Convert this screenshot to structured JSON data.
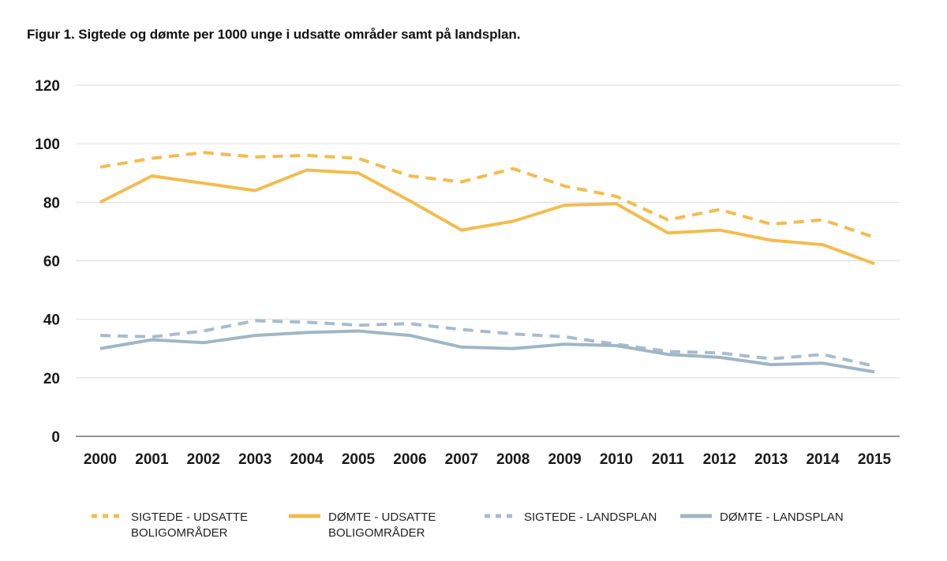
{
  "chart_data": {
    "type": "line",
    "title": "Figur 1. Sigtede og dømte per 1000 unge i udsatte områder samt på landsplan.",
    "xlabel": "",
    "ylabel": "",
    "x": [
      "2000",
      "2001",
      "2002",
      "2003",
      "2004",
      "2005",
      "2006",
      "2007",
      "2008",
      "2009",
      "2010",
      "2011",
      "2012",
      "2013",
      "2014",
      "2015"
    ],
    "ylim": [
      0,
      120
    ],
    "yticks": [
      "0",
      "20",
      "40",
      "60",
      "80",
      "100",
      "120"
    ],
    "grid": true,
    "legend_position": "bottom",
    "series": [
      {
        "name": "SIGTEDE - UDSATTE BOLIGOMRÅDER",
        "name_lines": [
          "SIGTEDE - UDSATTE",
          "BOLIGOMRÅDER"
        ],
        "color": "#f2bc4f",
        "style": "dashed",
        "values": [
          92,
          95,
          97,
          95.5,
          96,
          95,
          89,
          87,
          91.5,
          85.5,
          82,
          74,
          77.5,
          72.5,
          74,
          68
        ]
      },
      {
        "name": "DØMTE - UDSATTE BOLIGOMRÅDER",
        "name_lines": [
          "DØMTE - UDSATTE",
          "BOLIGOMRÅDER"
        ],
        "color": "#f2bc4f",
        "style": "solid",
        "values": [
          80,
          89,
          86.5,
          84,
          91,
          90,
          80.5,
          70.5,
          73.5,
          79,
          79.5,
          69.5,
          70.5,
          67,
          65.5,
          59
        ]
      },
      {
        "name": "SIGTEDE - LANDSPLAN",
        "name_lines": [
          "SIGTEDE - LANDSPLAN"
        ],
        "color": "#a9bccb",
        "style": "dashed",
        "values": [
          34.5,
          34,
          36,
          39.5,
          39,
          38,
          38.5,
          36.5,
          35,
          34,
          31.5,
          29,
          28.5,
          26.5,
          28,
          24
        ]
      },
      {
        "name": "DØMTE - LANDSPLAN",
        "name_lines": [
          "DØMTE - LANDSPLAN"
        ],
        "color": "#a0b6c6",
        "style": "solid",
        "values": [
          30,
          33,
          32,
          34.5,
          35.5,
          36,
          34.5,
          30.5,
          30,
          31.5,
          31,
          28,
          27,
          24.5,
          25,
          22
        ]
      }
    ]
  }
}
